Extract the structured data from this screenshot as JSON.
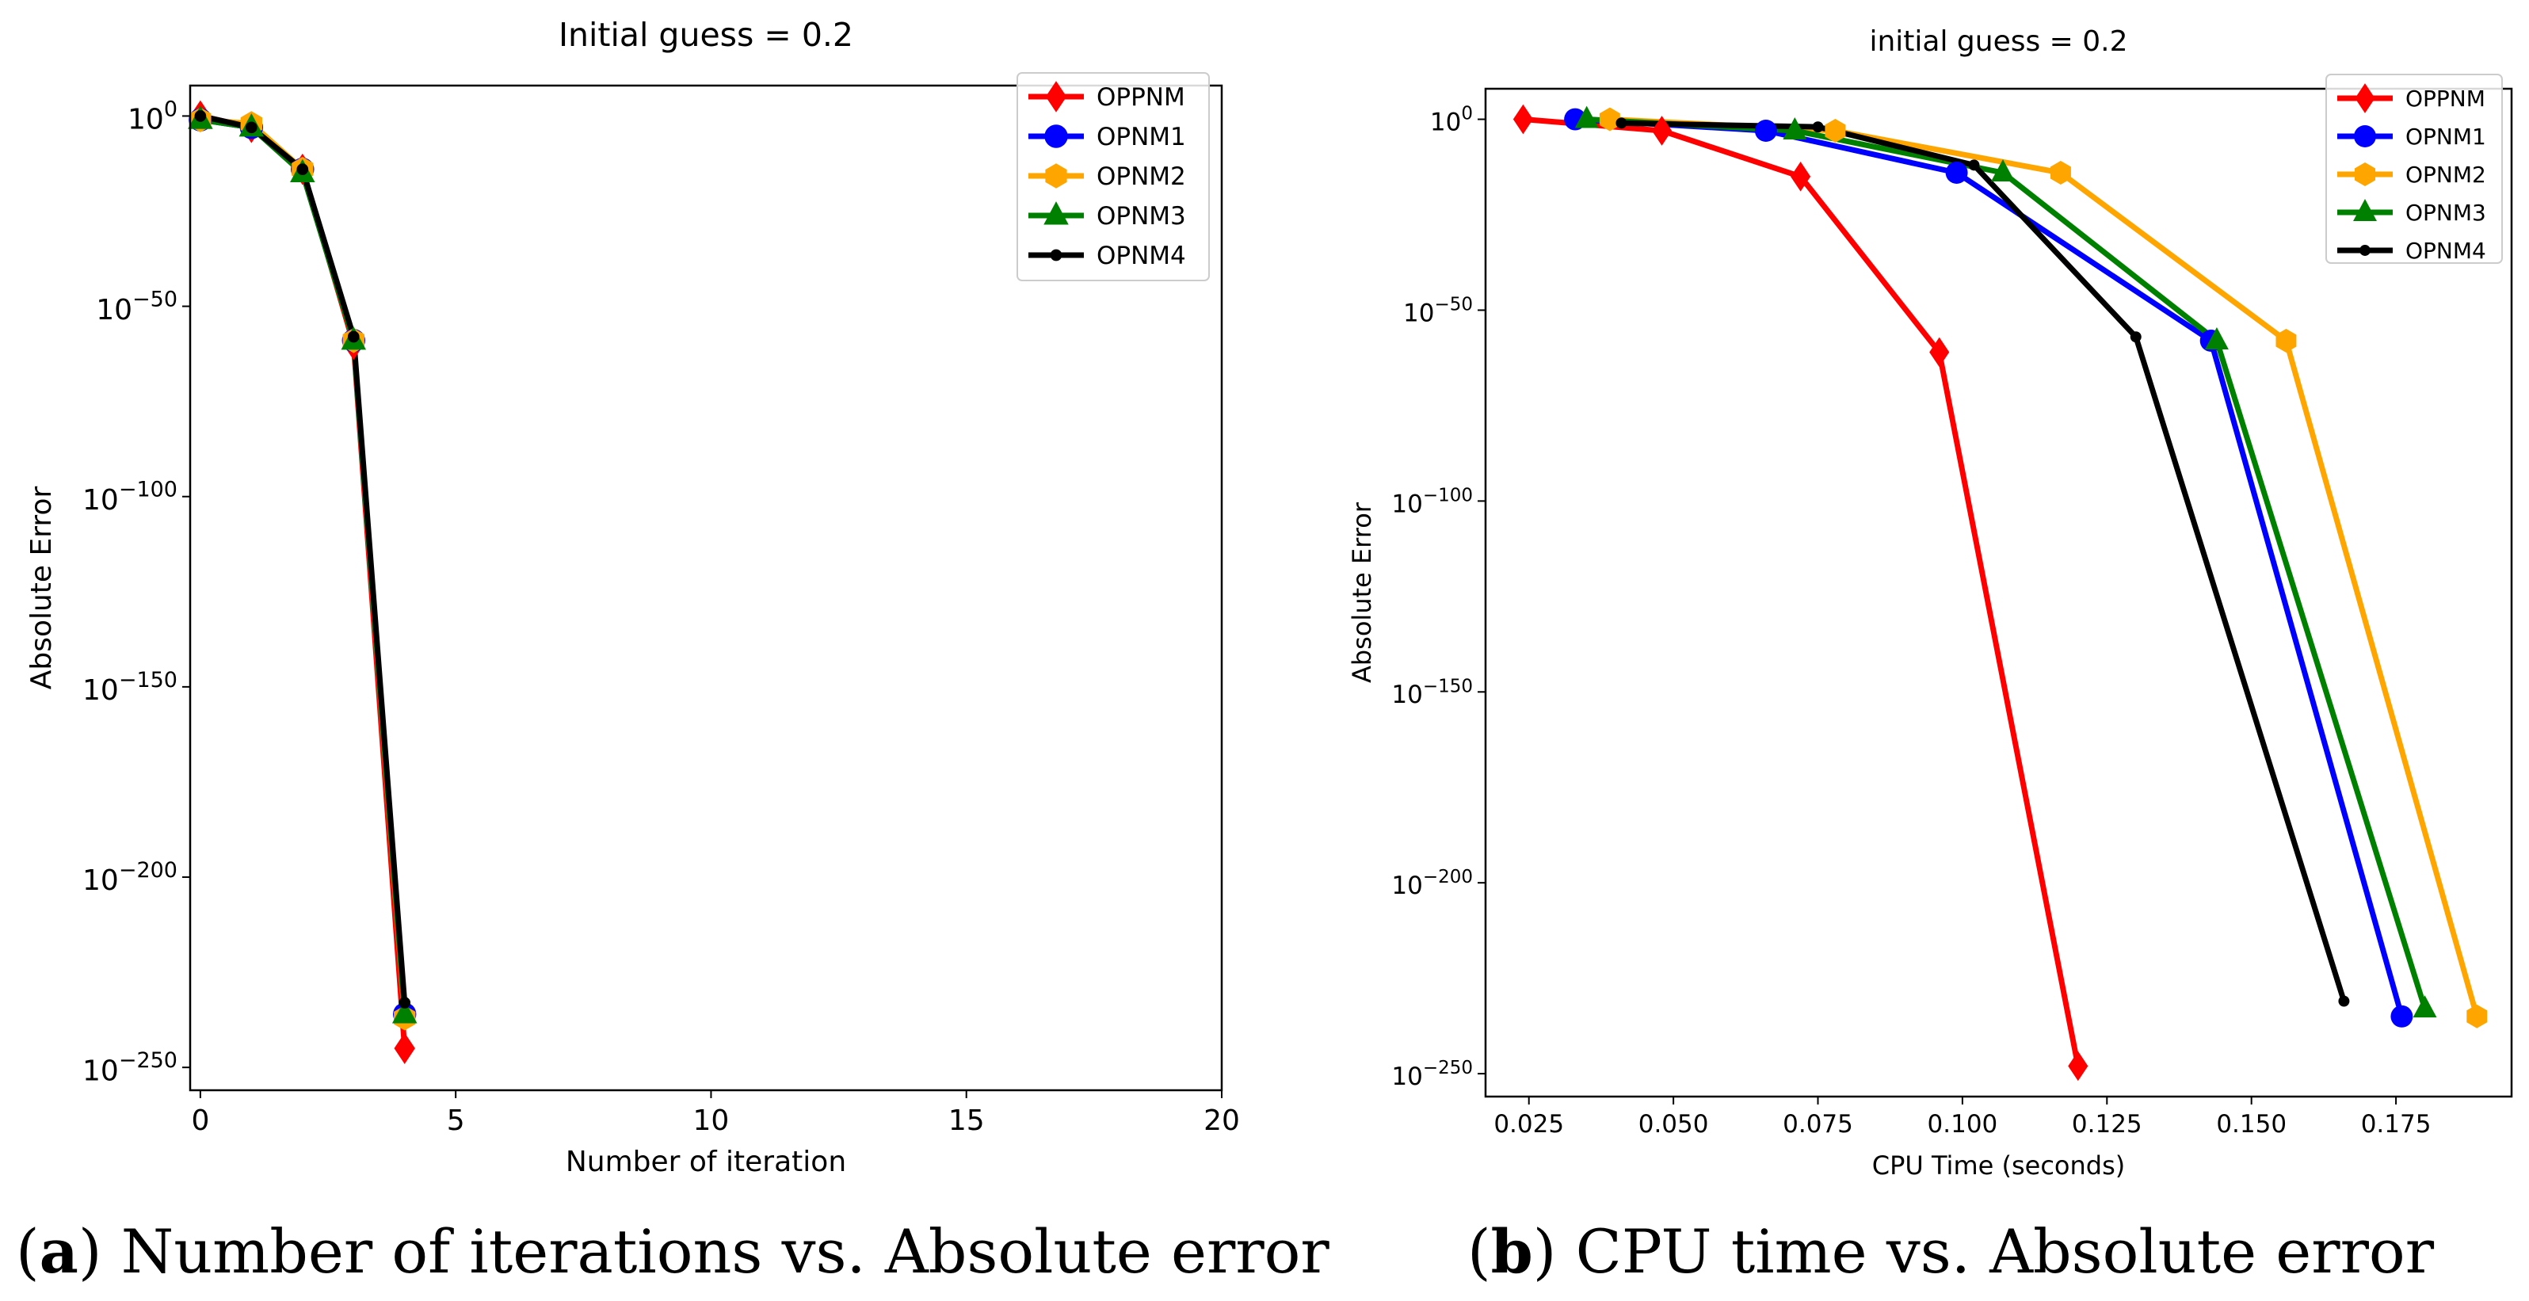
{
  "chart_data": [
    {
      "type": "line",
      "title": "Initial guess = 0.2",
      "xlabel": "Number of iteration",
      "ylabel": "Absolute Error",
      "xscale": "linear",
      "yscale": "log",
      "xlim": [
        -0.2,
        20
      ],
      "ylim_log10": [
        -256,
        8
      ],
      "xticks": [
        0,
        5,
        10,
        15,
        20
      ],
      "yticks_log10": [
        0,
        -50,
        -100,
        -150,
        -200,
        -250
      ],
      "legend_position": "top-right",
      "series": [
        {
          "name": "OPPNM",
          "color": "#ff0000",
          "marker": "diamond",
          "x": [
            0,
            1,
            2,
            3,
            4
          ],
          "log10_y": [
            0,
            -3,
            -14,
            -60,
            -245
          ]
        },
        {
          "name": "OPNM1",
          "color": "#0000ff",
          "marker": "circle",
          "x": [
            0,
            1,
            2,
            3,
            4
          ],
          "log10_y": [
            -1,
            -3,
            -14,
            -59,
            -236
          ]
        },
        {
          "name": "OPNM2",
          "color": "#ffa500",
          "marker": "hexagon",
          "x": [
            0,
            1,
            2,
            3,
            4
          ],
          "log10_y": [
            -1,
            -2,
            -14,
            -59,
            -237
          ]
        },
        {
          "name": "OPNM3",
          "color": "#008000",
          "marker": "triangle",
          "x": [
            0,
            1,
            2,
            3,
            4
          ],
          "log10_y": [
            -1,
            -3,
            -15,
            -59,
            -236
          ]
        },
        {
          "name": "OPNM4",
          "color": "#000000",
          "marker": "dot",
          "x": [
            0,
            1,
            2,
            3,
            4
          ],
          "log10_y": [
            0,
            -3,
            -14,
            -58,
            -233
          ]
        }
      ]
    },
    {
      "type": "line",
      "title": "initial guess = 0.2",
      "xlabel": "CPU Time (seconds)",
      "ylabel": "Absolute Error",
      "xscale": "linear",
      "yscale": "log",
      "xlim": [
        0.0175,
        0.195
      ],
      "ylim_log10": [
        -256,
        8
      ],
      "xticks": [
        0.025,
        0.05,
        0.075,
        0.1,
        0.125,
        0.15,
        0.175
      ],
      "xtick_labels": [
        "0.025",
        "0.050",
        "0.075",
        "0.100",
        "0.125",
        "0.150",
        "0.175"
      ],
      "yticks_log10": [
        0,
        -50,
        -100,
        -150,
        -200,
        -250
      ],
      "legend_position": "top-right",
      "series": [
        {
          "name": "OPPNM",
          "color": "#ff0000",
          "marker": "diamond",
          "x": [
            0.024,
            0.048,
            0.072,
            0.096,
            0.12
          ],
          "log10_y": [
            0,
            -3,
            -15,
            -61,
            -248
          ]
        },
        {
          "name": "OPNM1",
          "color": "#0000ff",
          "marker": "circle",
          "x": [
            0.033,
            0.066,
            0.099,
            0.143,
            0.176
          ],
          "log10_y": [
            0,
            -3,
            -14,
            -58,
            -235
          ]
        },
        {
          "name": "OPNM2",
          "color": "#ffa500",
          "marker": "hexagon",
          "x": [
            0.039,
            0.078,
            0.117,
            0.156,
            0.189
          ],
          "log10_y": [
            0,
            -3,
            -14,
            -58,
            -235
          ]
        },
        {
          "name": "OPNM3",
          "color": "#008000",
          "marker": "triangle",
          "x": [
            0.035,
            0.071,
            0.107,
            0.144,
            0.18
          ],
          "log10_y": [
            0,
            -3,
            -14,
            -58,
            -233
          ]
        },
        {
          "name": "OPNM4",
          "color": "#000000",
          "marker": "dot",
          "x": [
            0.041,
            0.075,
            0.102,
            0.13,
            0.166
          ],
          "log10_y": [
            -1,
            -2,
            -12,
            -57,
            -231
          ]
        }
      ]
    }
  ],
  "captions": [
    {
      "letter": "a",
      "text": "Number of iterations vs. Absolute error"
    },
    {
      "letter": "b",
      "text": "CPU time vs. Absolute error"
    }
  ]
}
